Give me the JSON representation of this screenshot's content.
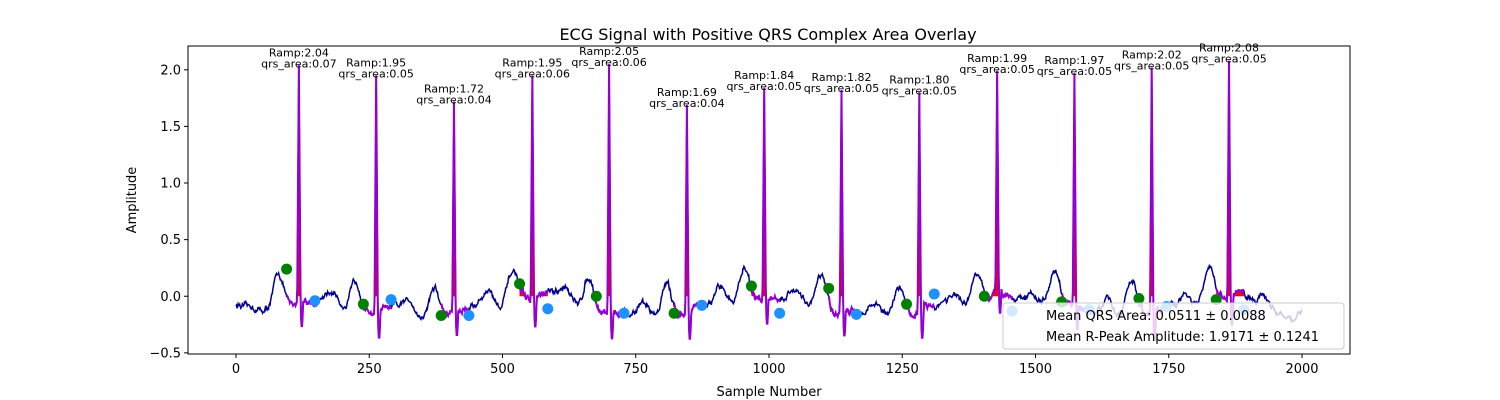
{
  "chart_data": {
    "type": "line",
    "title": "ECG Signal with Positive QRS Complex Area Overlay",
    "xlabel": "Sample Number",
    "ylabel": "Amplitude",
    "xlim": [
      -90,
      2090
    ],
    "ylim": [
      -0.51,
      2.21
    ],
    "xticks": [
      0,
      250,
      500,
      750,
      1000,
      1250,
      1500,
      1750,
      2000
    ],
    "yticks": [
      -0.5,
      0.0,
      0.5,
      1.0,
      1.5,
      2.0
    ],
    "ytick_labels": [
      "−0.5",
      "0.0",
      "0.5",
      "1.0",
      "1.5",
      "2.0"
    ],
    "grid": false,
    "colors": {
      "ecg": "#00008b",
      "qrs_segment": "#9400d3",
      "qrs_area": "#ff0000",
      "onset": "#008000",
      "offset": "#1e90ff"
    },
    "beats": [
      {
        "r_x": 118,
        "r_amp": 2.04,
        "qrs_area": 0.07,
        "onset": [
          95,
          0.24
        ],
        "offset": [
          148,
          -0.04
        ],
        "annot": [
          "Ramp:2.04",
          "qrs_area:0.07"
        ]
      },
      {
        "r_x": 263,
        "r_amp": 1.95,
        "qrs_area": 0.05,
        "onset": [
          239,
          -0.07
        ],
        "offset": [
          291,
          -0.03
        ],
        "annot": [
          "Ramp:1.95",
          "qrs_area:0.05"
        ]
      },
      {
        "r_x": 409,
        "r_amp": 1.72,
        "qrs_area": 0.04,
        "onset": [
          385,
          -0.17
        ],
        "offset": [
          437,
          -0.17
        ],
        "annot": [
          "Ramp:1.72",
          "qrs_area:0.04"
        ]
      },
      {
        "r_x": 556,
        "r_amp": 1.95,
        "qrs_area": 0.06,
        "onset": [
          532,
          0.11
        ],
        "offset": [
          585,
          -0.11
        ],
        "annot": [
          "Ramp:1.95",
          "qrs_area:0.06"
        ]
      },
      {
        "r_x": 700,
        "r_amp": 2.05,
        "qrs_area": 0.06,
        "onset": [
          676,
          0.0
        ],
        "offset": [
          728,
          -0.15
        ],
        "annot": [
          "Ramp:2.05",
          "qrs_area:0.06"
        ]
      },
      {
        "r_x": 846,
        "r_amp": 1.69,
        "qrs_area": 0.04,
        "onset": [
          822,
          -0.15
        ],
        "offset": [
          874,
          -0.08
        ],
        "annot": [
          "Ramp:1.69",
          "qrs_area:0.04"
        ]
      },
      {
        "r_x": 991,
        "r_amp": 1.84,
        "qrs_area": 0.05,
        "onset": [
          967,
          0.09
        ],
        "offset": [
          1020,
          -0.15
        ],
        "annot": [
          "Ramp:1.84",
          "qrs_area:0.05"
        ]
      },
      {
        "r_x": 1136,
        "r_amp": 1.82,
        "qrs_area": 0.05,
        "onset": [
          1112,
          0.07
        ],
        "offset": [
          1164,
          -0.16
        ],
        "annot": [
          "Ramp:1.82",
          "qrs_area:0.05"
        ]
      },
      {
        "r_x": 1282,
        "r_amp": 1.8,
        "qrs_area": 0.05,
        "onset": [
          1258,
          -0.07
        ],
        "offset": [
          1310,
          0.02
        ],
        "annot": [
          "Ramp:1.80",
          "qrs_area:0.05"
        ]
      },
      {
        "r_x": 1428,
        "r_amp": 1.99,
        "qrs_area": 0.05,
        "onset": [
          1404,
          0.0
        ],
        "offset": [
          1456,
          -0.13
        ],
        "annot": [
          "Ramp:1.99",
          "qrs_area:0.05"
        ]
      },
      {
        "r_x": 1573,
        "r_amp": 1.97,
        "qrs_area": 0.05,
        "onset": [
          1549,
          -0.05
        ],
        "offset": [
          1601,
          -0.12
        ],
        "annot": [
          "Ramp:1.97",
          "qrs_area:0.05"
        ]
      },
      {
        "r_x": 1718,
        "r_amp": 2.02,
        "qrs_area": 0.05,
        "onset": [
          1694,
          -0.02
        ],
        "offset": [
          1746,
          -0.09
        ],
        "annot": [
          "Ramp:2.02",
          "qrs_area:0.05"
        ]
      },
      {
        "r_x": 1863,
        "r_amp": 2.08,
        "qrs_area": 0.05,
        "onset": [
          1839,
          -0.03
        ],
        "offset": [
          1891,
          -0.12
        ],
        "annot": [
          "Ramp:2.08",
          "qrs_area:0.05"
        ]
      }
    ],
    "legend": {
      "position": "lower right",
      "entries": [
        "Mean QRS Area: 0.0511 ± 0.0088",
        "Mean R-Peak Amplitude: 1.9171 ± 0.1241"
      ]
    }
  }
}
